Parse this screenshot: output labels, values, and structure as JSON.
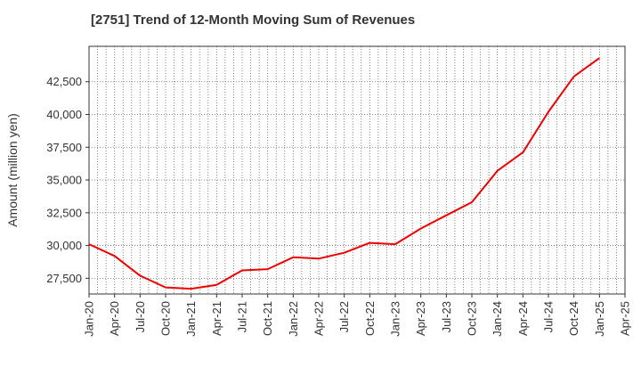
{
  "chart_data": {
    "type": "line",
    "title": "[2751]  Trend of 12-Month Moving Sum of Revenues",
    "xlabel": "",
    "ylabel": "Amount (million yen)",
    "x_ticks": [
      "Jan-20",
      "Apr-20",
      "Jul-20",
      "Oct-20",
      "Jan-21",
      "Apr-21",
      "Jul-21",
      "Oct-21",
      "Jan-22",
      "Apr-22",
      "Jul-22",
      "Oct-22",
      "Jan-23",
      "Apr-23",
      "Jul-23",
      "Oct-23",
      "Jan-24",
      "Apr-24",
      "Jul-24",
      "Oct-24",
      "Jan-25",
      "Apr-25"
    ],
    "y_ticks": [
      27500,
      30000,
      32500,
      35000,
      37500,
      40000,
      42500
    ],
    "ylim": [
      26300,
      45200
    ],
    "grid": true,
    "line_color": "#ee0000",
    "series": [
      {
        "values": [
          30100,
          29200,
          27700,
          26800,
          26700,
          27000,
          28100,
          28200,
          29100,
          29000,
          29450,
          30200,
          30100,
          31300,
          32300,
          33300,
          35700,
          37100,
          40200,
          42900,
          44300
        ]
      }
    ]
  }
}
